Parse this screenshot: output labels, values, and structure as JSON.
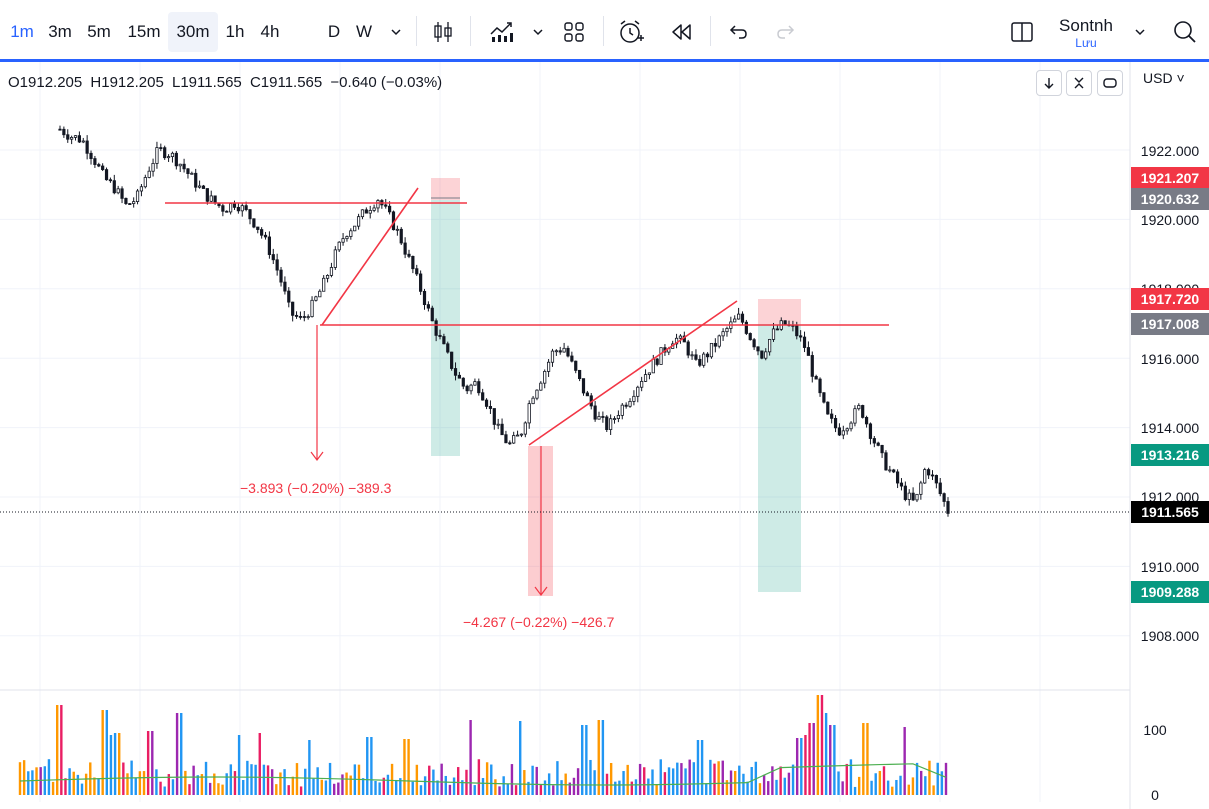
{
  "toolbar": {
    "intervals": [
      "1m",
      "3m",
      "5m",
      "15m",
      "30m",
      "1h",
      "4h",
      "D",
      "W"
    ],
    "active_interval": "1m",
    "highlighted_interval": "30m",
    "icons": [
      "chevron-down-icon",
      "candles-icon",
      "indicators-icon",
      "chevron-down-icon",
      "layout-grid-icon",
      "alert-clock-icon",
      "replay-icon",
      "undo-icon",
      "redo-icon",
      "panel-icon",
      "chevron-down-icon",
      "search-icon"
    ],
    "user_name": "Sontnh",
    "user_status": "Lưu"
  },
  "legend": {
    "open": "O1912.205",
    "high": "H1912.205",
    "low": "L1911.565",
    "close": "C1911.565",
    "change": "−0.640 (−0.03%)"
  },
  "currency": "USD",
  "price_axis": {
    "ticks": [
      "1922.000",
      "1920.000",
      "1918.000",
      "1916.000",
      "1914.000",
      "1912.000",
      "1910.000",
      "1908.000"
    ],
    "labels": [
      {
        "text": "1921.207",
        "color": "#f23645"
      },
      {
        "text": "1920.632",
        "color": "#787b86"
      },
      {
        "text": "1917.720",
        "color": "#f23645"
      },
      {
        "text": "1917.008",
        "color": "#787b86"
      },
      {
        "text": "1913.216",
        "color": "#089981"
      },
      {
        "text": "1911.565",
        "color": "#000000"
      },
      {
        "text": "1909.288",
        "color": "#089981"
      }
    ]
  },
  "volume_axis": {
    "ticks": [
      "100",
      "0"
    ]
  },
  "measurements": [
    {
      "text": "−3.893 (−0.20%) −389.3"
    },
    {
      "text": "−4.267 (−0.22%) −426.7"
    }
  ],
  "chart_data": {
    "type": "candlestick",
    "instrument_timeframe": "1m",
    "ylim": [
      1907.0,
      1923.0
    ],
    "close_path": [
      1922.6,
      1922.4,
      1922.3,
      1921.8,
      1921.2,
      1920.9,
      1920.4,
      1920.6,
      1921.4,
      1922.0,
      1921.9,
      1921.6,
      1921.2,
      1920.8,
      1920.5,
      1920.3,
      1920.5,
      1920.2,
      1919.8,
      1919.2,
      1918.4,
      1917.3,
      1917.1,
      1917.5,
      1918.1,
      1918.9,
      1919.6,
      1919.9,
      1920.3,
      1920.6,
      1920.1,
      1919.5,
      1918.7,
      1917.9,
      1917.0,
      1916.3,
      1915.6,
      1915.1,
      1915.3,
      1914.7,
      1913.9,
      1913.5,
      1913.8,
      1914.9,
      1915.5,
      1916.2,
      1916.3,
      1915.6,
      1914.9,
      1914.3,
      1914.0,
      1914.5,
      1914.9,
      1915.4,
      1915.8,
      1916.2,
      1916.6,
      1916.4,
      1915.8,
      1916.1,
      1916.5,
      1916.9,
      1917.2,
      1916.6,
      1916.1,
      1916.7,
      1917.0,
      1916.8,
      1916.3,
      1915.2,
      1914.3,
      1913.9,
      1914.2,
      1914.6,
      1913.8,
      1913.1,
      1912.6,
      1912.1,
      1911.8,
      1912.9,
      1912.3,
      1911.6
    ],
    "drawings": [
      {
        "type": "horizontal",
        "price": 1920.5
      },
      {
        "type": "horizontal",
        "price": 1917.0
      },
      {
        "type": "horizontal",
        "price": 1917.0
      },
      {
        "type": "trendline"
      },
      {
        "type": "trendline"
      }
    ]
  },
  "colors": {
    "up": "#089981",
    "down": "#f23645",
    "accent": "#2962ff",
    "volume_ma": "#4caf50"
  }
}
